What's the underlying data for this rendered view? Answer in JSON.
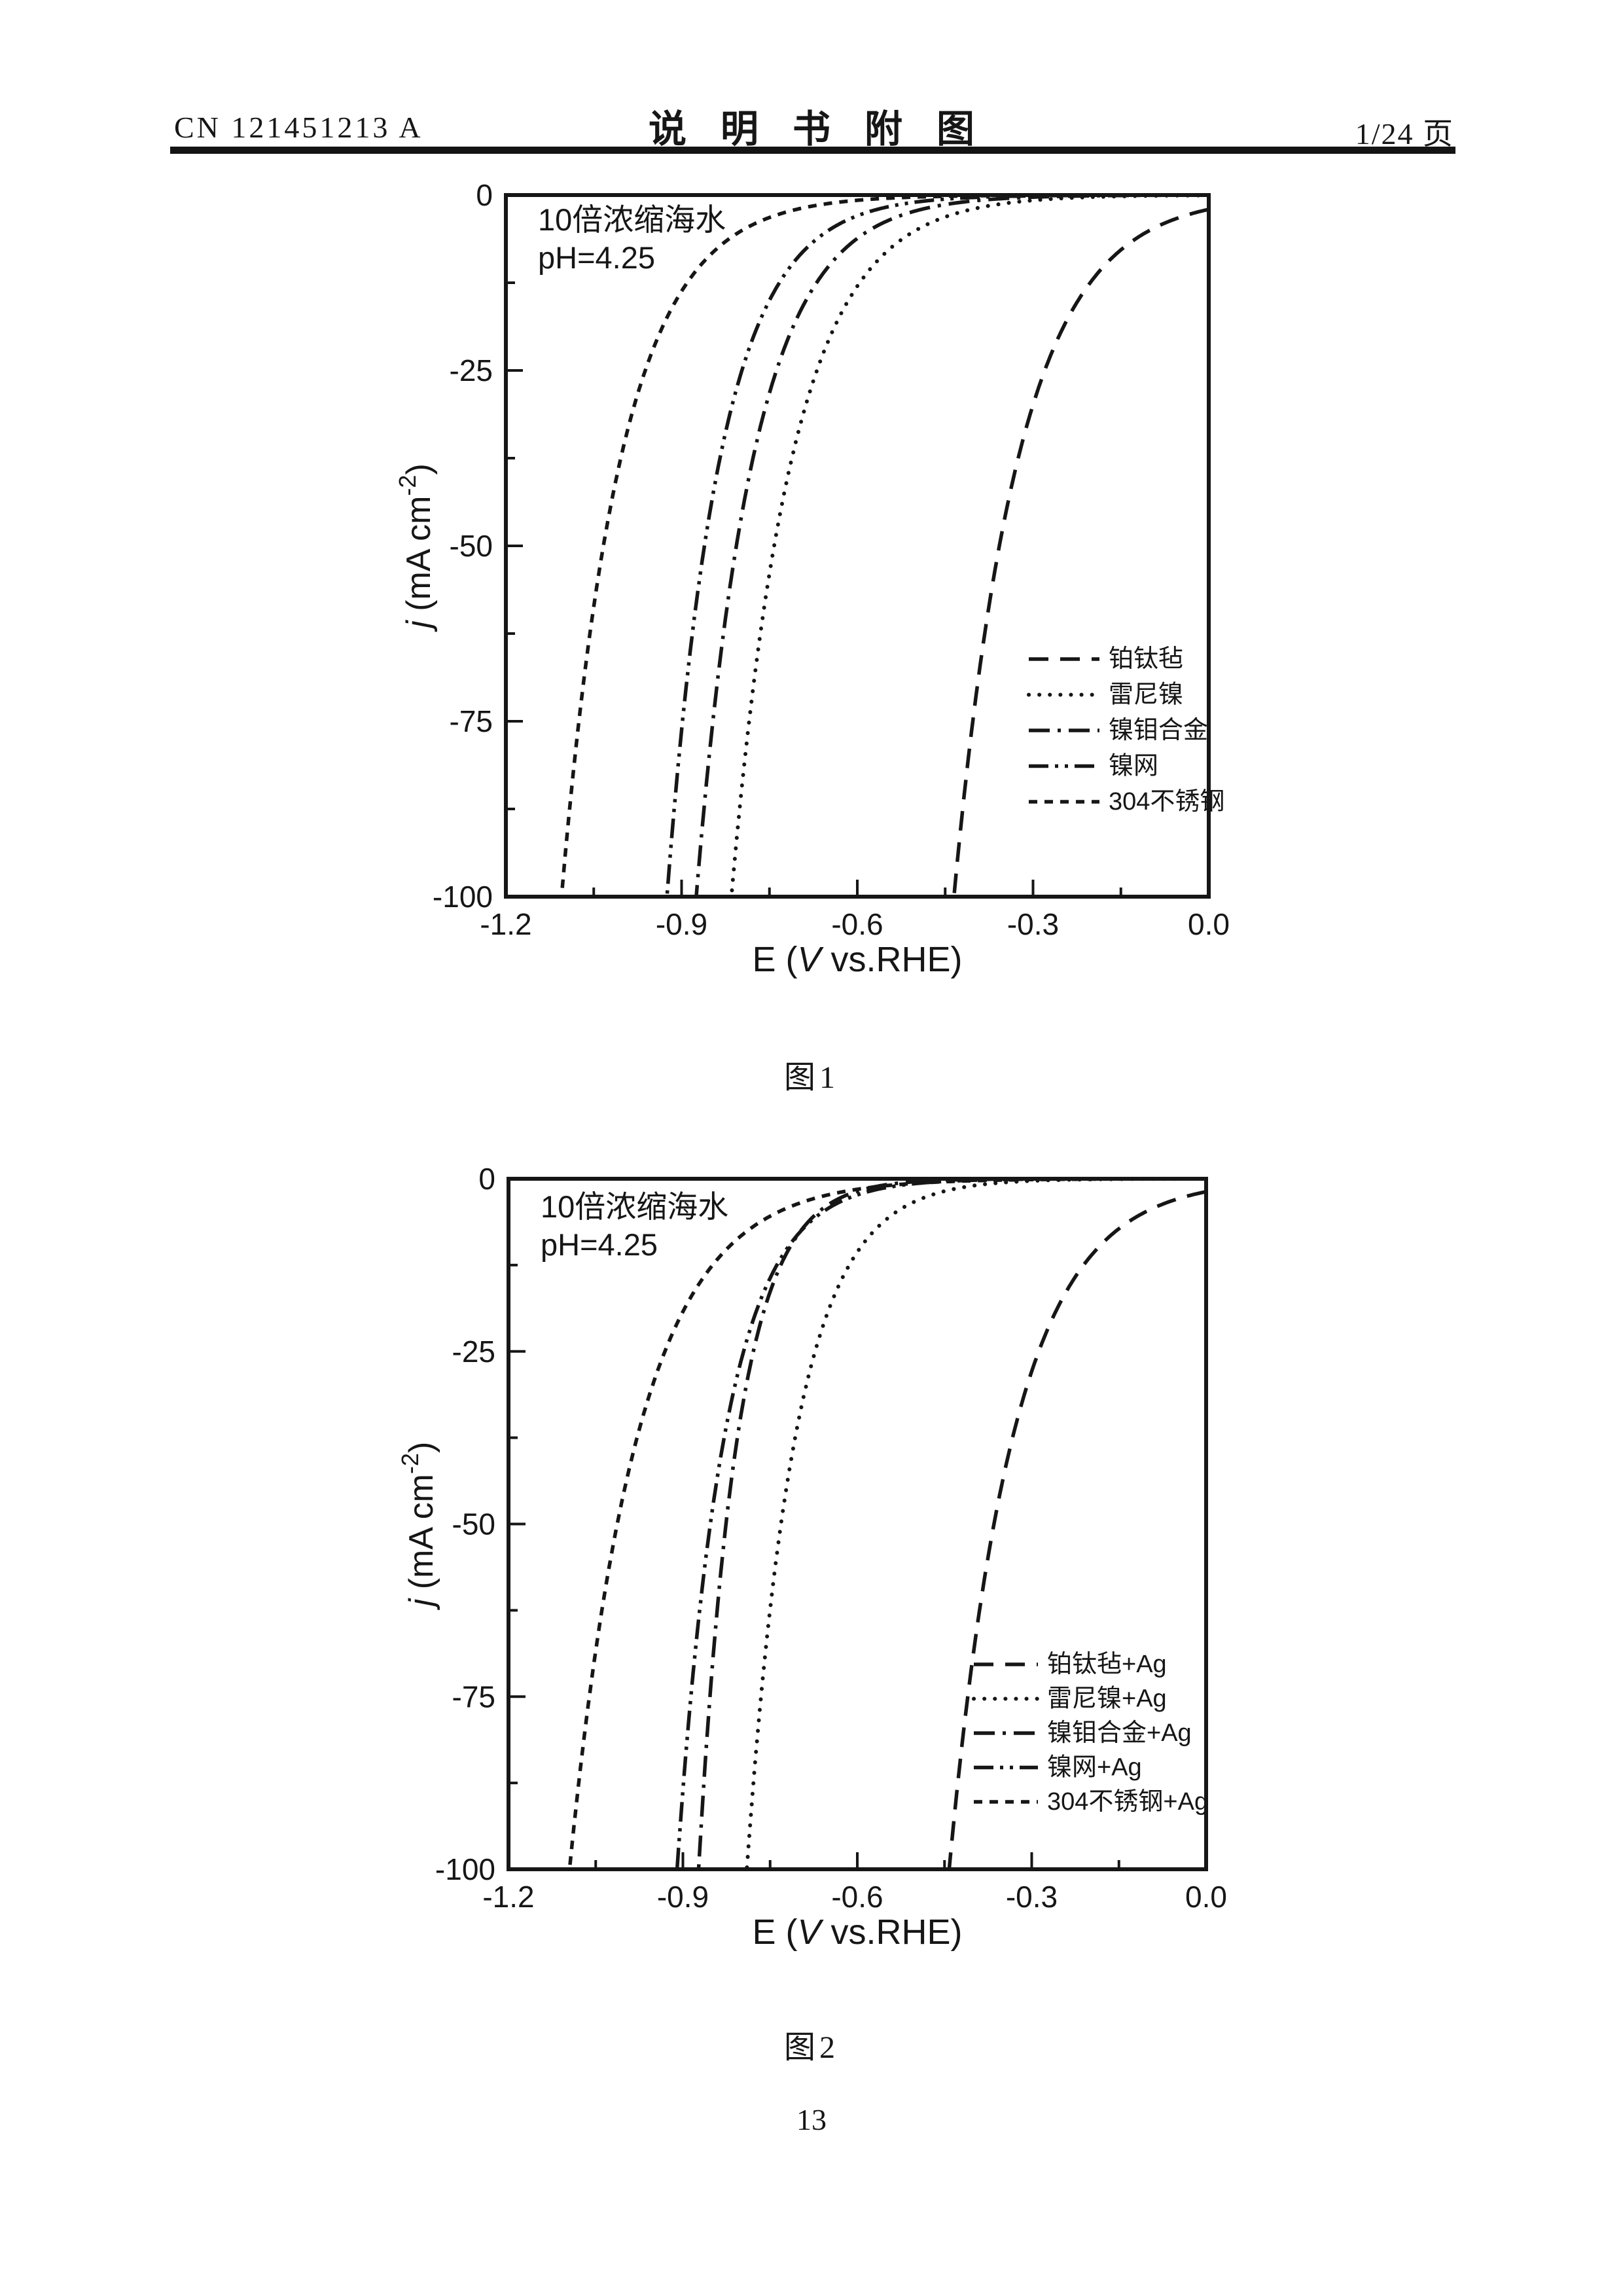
{
  "header": {
    "doc_number": "CN 121451213 A",
    "title": "说明书附图",
    "page_indicator": "1/24 页"
  },
  "figure_captions": {
    "fig1": "图1",
    "fig2": "图2"
  },
  "page_number": "13",
  "chart_data": [
    {
      "type": "line",
      "figure": "图1",
      "annotation": [
        "10倍浓缩海水",
        "pH=4.25"
      ],
      "xlabel": {
        "pre": "E (",
        "italic": "V",
        "post": " vs.RHE)"
      },
      "ylabel": {
        "italic": "j",
        "pre": " (mA cm",
        "sup": "-2",
        "post": ")"
      },
      "xlim": [
        -1.2,
        0.0
      ],
      "ylim": [
        -100,
        0
      ],
      "x_ticks": [
        -1.2,
        -0.9,
        -0.6,
        -0.3,
        0.0
      ],
      "x_tick_labels": [
        "-1.2",
        "-0.9",
        "-0.6",
        "-0.3",
        "0.0"
      ],
      "x_minor_ticks": [
        -1.05,
        -0.75,
        -0.45,
        -0.15
      ],
      "y_ticks": [
        0,
        -25,
        -50,
        -75,
        -100
      ],
      "y_tick_labels": [
        "0",
        "-25",
        "-50",
        "-75",
        "-100"
      ],
      "y_minor_ticks": [
        -12.5,
        -37.5,
        -62.5,
        -87.5
      ],
      "grid": false,
      "legend_position": "middle-right",
      "series": [
        {
          "name": "铂钛毡",
          "line_style": "long-dash",
          "E_at_minus1mA": 0.08,
          "E_at_minus100mA": -0.435,
          "points_E": [
            0.0,
            -0.1,
            -0.2,
            -0.3,
            -0.4,
            -0.435
          ],
          "points_j": [
            -2.0,
            -5.0,
            -12.2,
            -29.9,
            -73.1,
            -100
          ]
        },
        {
          "name": "雷尼镍",
          "line_style": "dotted",
          "E_at_minus1mA": -0.33,
          "E_at_minus100mA": -0.815,
          "points_E": [
            -0.3,
            -0.4,
            -0.5,
            -0.6,
            -0.7,
            -0.8,
            -0.815
          ],
          "points_j": [
            -0.75,
            -1.9,
            -5.0,
            -13.0,
            -33.6,
            -86.9,
            -100
          ]
        },
        {
          "name": "镍钼合金",
          "line_style": "dash-dot",
          "E_at_minus1mA": -0.42,
          "E_at_minus100mA": -0.875,
          "points_E": [
            -0.4,
            -0.5,
            -0.6,
            -0.7,
            -0.8,
            -0.875
          ],
          "points_j": [
            -0.8,
            -2.3,
            -6.2,
            -17.0,
            -46.8,
            -100
          ]
        },
        {
          "name": "镍网",
          "line_style": "dash-dot-dot",
          "E_at_minus1mA": -0.5,
          "E_at_minus100mA": -0.925,
          "points_E": [
            -0.5,
            -0.6,
            -0.7,
            -0.8,
            -0.9,
            -0.925
          ],
          "points_j": [
            -1.0,
            -3.0,
            -8.7,
            -25.8,
            -76.2,
            -100
          ]
        },
        {
          "name": "304不锈钢",
          "line_style": "short-dash",
          "E_at_minus1mA": -0.63,
          "E_at_minus100mA": -1.105,
          "points_E": [
            -0.6,
            -0.7,
            -0.8,
            -0.9,
            -1.0,
            -1.1,
            -1.105
          ],
          "points_j": [
            -0.75,
            -2.0,
            -5.2,
            -13.7,
            -36.2,
            -95.5,
            -100
          ]
        }
      ]
    },
    {
      "type": "line",
      "figure": "图2",
      "annotation": [
        "10倍浓缩海水",
        "pH=4.25"
      ],
      "xlabel": {
        "pre": "E (",
        "italic": "V",
        "post": " vs.RHE)"
      },
      "ylabel": {
        "italic": "j",
        "pre": " (mA cm",
        "sup": "-2",
        "post": ")"
      },
      "xlim": [
        -1.2,
        0.0
      ],
      "ylim": [
        -100,
        0
      ],
      "x_ticks": [
        -1.2,
        -0.9,
        -0.6,
        -0.3,
        0.0
      ],
      "x_tick_labels": [
        "-1.2",
        "-0.9",
        "-0.6",
        "-0.3",
        "0.0"
      ],
      "x_minor_ticks": [
        -1.05,
        -0.75,
        -0.45,
        -0.15
      ],
      "y_ticks": [
        0,
        -25,
        -50,
        -75,
        -100
      ],
      "y_tick_labels": [
        "0",
        "-25",
        "-50",
        "-75",
        "-100"
      ],
      "y_minor_ticks": [
        -12.5,
        -37.5,
        -62.5,
        -87.5
      ],
      "grid": false,
      "legend_position": "middle-right",
      "series": [
        {
          "name": "铂钛毡+Ag",
          "line_style": "long-dash",
          "E_at_minus1mA": 0.07,
          "E_at_minus100mA": -0.442,
          "points_E": [
            0.0,
            -0.1,
            -0.2,
            -0.3,
            -0.4,
            -0.442
          ],
          "points_j": [
            -1.9,
            -4.6,
            -11.3,
            -27.8,
            -68.3,
            -100
          ]
        },
        {
          "name": "雷尼镍+Ag",
          "line_style": "dotted",
          "E_at_minus1mA": -0.4,
          "E_at_minus100mA": -0.79,
          "points_E": [
            -0.4,
            -0.5,
            -0.6,
            -0.7,
            -0.79
          ],
          "points_j": [
            -1.0,
            -3.3,
            -10.6,
            -34.6,
            -100
          ]
        },
        {
          "name": "镍钼合金+Ag",
          "line_style": "dash-dot",
          "E_at_minus1mA": -0.56,
          "E_at_minus100mA": -0.873,
          "points_E": [
            -0.5,
            -0.6,
            -0.7,
            -0.8,
            -0.873
          ],
          "points_j": [
            -0.4,
            -1.8,
            -7.8,
            -34.2,
            -100
          ]
        },
        {
          "name": "镍网+Ag",
          "line_style": "dash-dot-dot",
          "E_at_minus1mA": -0.53,
          "E_at_minus100mA": -0.91,
          "points_E": [
            -0.5,
            -0.6,
            -0.7,
            -0.8,
            -0.9,
            -0.91
          ],
          "points_j": [
            -0.7,
            -2.3,
            -7.9,
            -26.3,
            -88.6,
            -100
          ]
        },
        {
          "name": "304不锈钢+Ag",
          "line_style": "short-dash",
          "E_at_minus1mA": -0.55,
          "E_at_minus100mA": -1.095,
          "points_E": [
            -0.6,
            -0.7,
            -0.8,
            -0.9,
            -1.0,
            -1.095
          ],
          "points_j": [
            -1.5,
            -3.5,
            -8.3,
            -19.2,
            -44.8,
            -100
          ]
        }
      ]
    }
  ]
}
